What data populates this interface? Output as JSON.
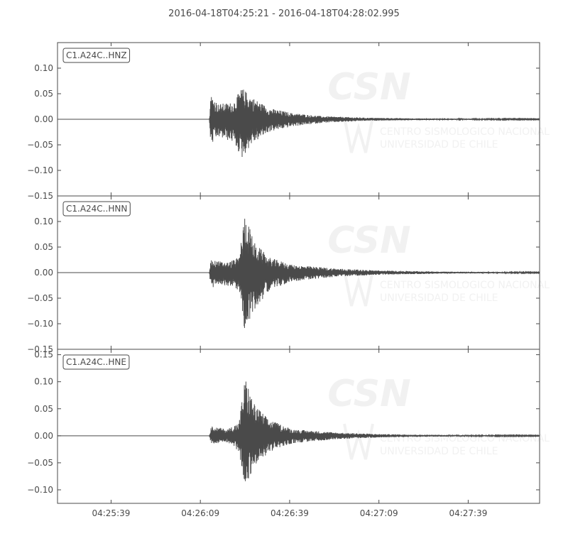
{
  "chart_data": {
    "type": "line",
    "title": "2016-04-18T04:25:21  -  2016-04-18T04:28:02.995",
    "time_window": {
      "start": "2016-04-18T04:25:21",
      "end": "2016-04-18T04:28:02.995"
    },
    "x_axis": {
      "ticks": [
        {
          "time": "2016-04-18T04:25:39",
          "label": "04:25:39"
        },
        {
          "time": "2016-04-18T04:26:09",
          "label": "04:26:09"
        },
        {
          "time": "2016-04-18T04:26:39",
          "label": "04:26:39"
        },
        {
          "time": "2016-04-18T04:27:09",
          "label": "04:27:09"
        },
        {
          "time": "2016-04-18T04:27:39",
          "label": "04:27:39"
        }
      ]
    },
    "grid": false,
    "watermark": {
      "logo": "CSN",
      "text_lines": [
        "CENTRO SISMOLOGICO NACIONAL",
        "UNIVERSIDAD DE CHILE"
      ]
    },
    "colors": {
      "trace": "#4a4a4a",
      "axis": "#4a4a4a",
      "watermark": "#f1f1f1"
    },
    "series": [
      {
        "name": "C1.A24C..HNZ",
        "ylim": [
          -0.15,
          0.15
        ],
        "yticks": [
          -0.15,
          -0.1,
          -0.05,
          0.0,
          0.05,
          0.1
        ],
        "ytick_labels": [
          "−0.15",
          "−0.10",
          "−0.05",
          "0.00",
          "0.05",
          "0.10"
        ],
        "envelope": [
          {
            "time": "2016-04-18T04:25:21",
            "max": 0.0,
            "min": 0.0
          },
          {
            "time": "2016-04-18T04:26:12",
            "max": 0.0,
            "min": 0.0
          },
          {
            "time": "2016-04-18T04:26:12.5",
            "max": 0.05,
            "min": -0.052
          },
          {
            "time": "2016-04-18T04:26:15",
            "max": 0.03,
            "min": -0.035
          },
          {
            "time": "2016-04-18T04:26:20",
            "max": 0.033,
            "min": -0.045
          },
          {
            "time": "2016-04-18T04:26:23",
            "max": 0.062,
            "min": -0.077
          },
          {
            "time": "2016-04-18T04:26:26",
            "max": 0.045,
            "min": -0.05
          },
          {
            "time": "2016-04-18T04:26:32",
            "max": 0.022,
            "min": -0.025
          },
          {
            "time": "2016-04-18T04:26:40",
            "max": 0.012,
            "min": -0.014
          },
          {
            "time": "2016-04-18T04:26:50",
            "max": 0.006,
            "min": -0.007
          },
          {
            "time": "2016-04-18T04:27:05",
            "max": 0.003,
            "min": -0.003
          },
          {
            "time": "2016-04-18T04:27:25",
            "max": 0.0015,
            "min": -0.0015
          },
          {
            "time": "2016-04-18T04:28:02.995",
            "max": 0.0007,
            "min": -0.0007
          }
        ]
      },
      {
        "name": "C1.A24C..HNN",
        "ylim": [
          -0.15,
          0.15
        ],
        "yticks": [
          -0.15,
          -0.1,
          -0.05,
          0.0,
          0.05,
          0.1
        ],
        "ytick_labels": [
          "−0.15",
          "−0.10",
          "−0.05",
          "0.00",
          "0.05",
          "0.10"
        ],
        "envelope": [
          {
            "time": "2016-04-18T04:25:21",
            "max": 0.0,
            "min": 0.0
          },
          {
            "time": "2016-04-18T04:26:12",
            "max": 0.0,
            "min": 0.0
          },
          {
            "time": "2016-04-18T04:26:12.5",
            "max": 0.025,
            "min": -0.03
          },
          {
            "time": "2016-04-18T04:26:18",
            "max": 0.02,
            "min": -0.025
          },
          {
            "time": "2016-04-18T04:26:22",
            "max": 0.03,
            "min": -0.035
          },
          {
            "time": "2016-04-18T04:26:24",
            "max": 0.12,
            "min": -0.12
          },
          {
            "time": "2016-04-18T04:26:27",
            "max": 0.06,
            "min": -0.075
          },
          {
            "time": "2016-04-18T04:26:32",
            "max": 0.03,
            "min": -0.035
          },
          {
            "time": "2016-04-18T04:26:40",
            "max": 0.015,
            "min": -0.017
          },
          {
            "time": "2016-04-18T04:26:55",
            "max": 0.008,
            "min": -0.008
          },
          {
            "time": "2016-04-18T04:27:10",
            "max": 0.004,
            "min": -0.004
          },
          {
            "time": "2016-04-18T04:27:30",
            "max": 0.002,
            "min": -0.002
          },
          {
            "time": "2016-04-18T04:28:02.995",
            "max": 0.0008,
            "min": -0.0008
          }
        ]
      },
      {
        "name": "C1.A24C..HNE",
        "ylim": [
          -0.125,
          0.16
        ],
        "yticks": [
          -0.1,
          -0.05,
          0.0,
          0.05,
          0.1,
          0.15
        ],
        "ytick_labels": [
          "−0.10",
          "−0.05",
          "0.00",
          "0.05",
          "0.10",
          "0.15"
        ],
        "envelope": [
          {
            "time": "2016-04-18T04:25:21",
            "max": 0.0,
            "min": 0.0
          },
          {
            "time": "2016-04-18T04:26:12",
            "max": 0.0,
            "min": 0.0
          },
          {
            "time": "2016-04-18T04:26:12.5",
            "max": 0.018,
            "min": -0.015
          },
          {
            "time": "2016-04-18T04:26:18",
            "max": 0.012,
            "min": -0.012
          },
          {
            "time": "2016-04-18T04:26:22",
            "max": 0.025,
            "min": -0.03
          },
          {
            "time": "2016-04-18T04:26:24",
            "max": 0.11,
            "min": -0.092
          },
          {
            "time": "2016-04-18T04:26:27",
            "max": 0.06,
            "min": -0.06
          },
          {
            "time": "2016-04-18T04:26:32",
            "max": 0.03,
            "min": -0.03
          },
          {
            "time": "2016-04-18T04:26:40",
            "max": 0.012,
            "min": -0.014
          },
          {
            "time": "2016-04-18T04:26:55",
            "max": 0.006,
            "min": -0.006
          },
          {
            "time": "2016-04-18T04:27:10",
            "max": 0.003,
            "min": -0.003
          },
          {
            "time": "2016-04-18T04:27:30",
            "max": 0.0015,
            "min": -0.0015
          },
          {
            "time": "2016-04-18T04:28:02.995",
            "max": 0.0007,
            "min": -0.0007
          }
        ]
      }
    ]
  }
}
